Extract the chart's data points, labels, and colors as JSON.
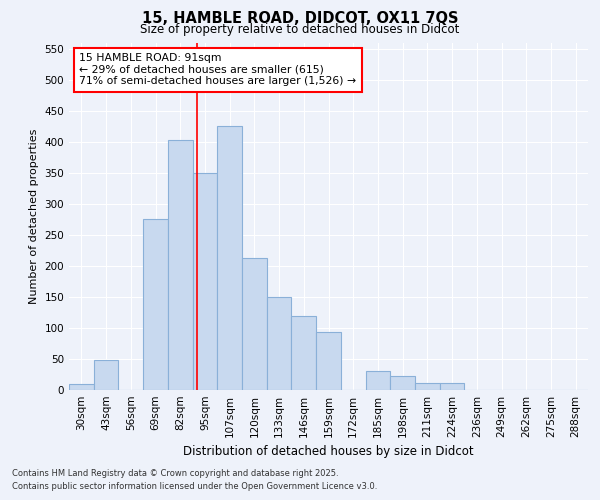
{
  "title_line1": "15, HAMBLE ROAD, DIDCOT, OX11 7QS",
  "title_line2": "Size of property relative to detached houses in Didcot",
  "xlabel": "Distribution of detached houses by size in Didcot",
  "ylabel": "Number of detached properties",
  "categories": [
    "30sqm",
    "43sqm",
    "56sqm",
    "69sqm",
    "82sqm",
    "95sqm",
    "107sqm",
    "120sqm",
    "133sqm",
    "146sqm",
    "159sqm",
    "172sqm",
    "185sqm",
    "198sqm",
    "211sqm",
    "224sqm",
    "236sqm",
    "249sqm",
    "262sqm",
    "275sqm",
    "288sqm"
  ],
  "bar_heights": [
    10,
    48,
    0,
    275,
    403,
    350,
    425,
    213,
    150,
    119,
    93,
    0,
    31,
    22,
    11,
    11,
    0,
    0,
    0,
    0,
    0
  ],
  "bar_color": "#c8d9ef",
  "bar_edge_color": "#8ab0d8",
  "ylim": [
    0,
    560
  ],
  "yticks": [
    0,
    50,
    100,
    150,
    200,
    250,
    300,
    350,
    400,
    450,
    500,
    550
  ],
  "property_line_x": 3,
  "annotation_line1": "15 HAMBLE ROAD: 91sqm",
  "annotation_line2": "← 29% of detached houses are smaller (615)",
  "annotation_line3": "71% of semi-detached houses are larger (1,526) →",
  "footer_line1": "Contains HM Land Registry data © Crown copyright and database right 2025.",
  "footer_line2": "Contains public sector information licensed under the Open Government Licence v3.0.",
  "background_color": "#eef2fa",
  "grid_color": "#ffffff"
}
